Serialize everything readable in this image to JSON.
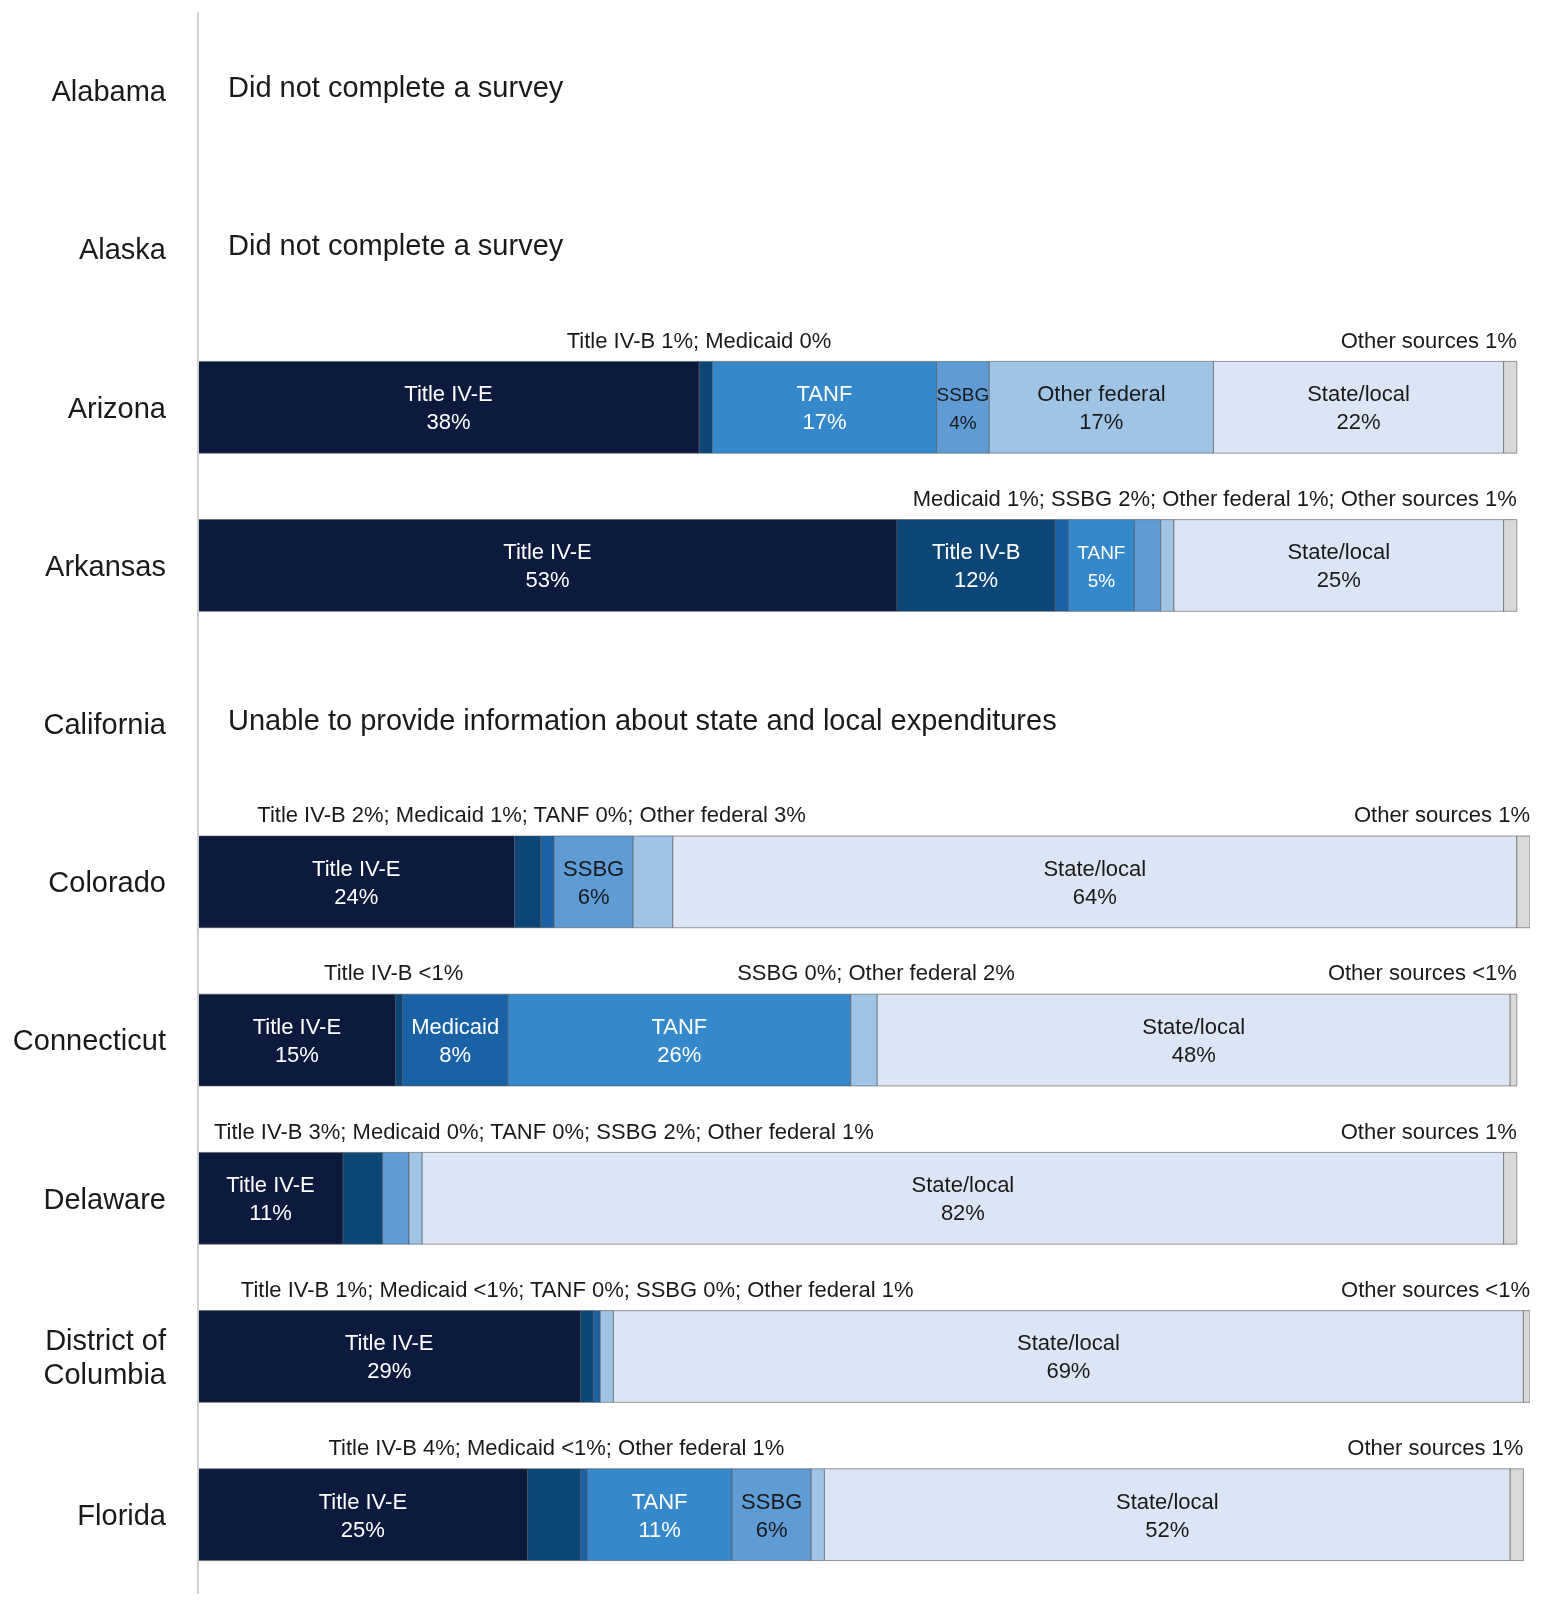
{
  "chart_data": {
    "type": "bar",
    "orientation": "horizontal",
    "stacked": true,
    "tick_labels": "y",
    "categories": [
      "Alabama",
      "Alaska",
      "Arizona",
      "Arkansas",
      "California",
      "Colorado",
      "Connecticut",
      "Delaware",
      "District of Columbia",
      "Florida"
    ],
    "series": [
      {
        "name": "Title IV-E",
        "color": "#0b1a3d",
        "values": [
          null,
          null,
          38,
          53,
          null,
          24,
          15,
          11,
          29,
          25
        ],
        "value_labels": [
          null,
          null,
          "38%",
          "53%",
          null,
          "24%",
          "15%",
          "11%",
          "29%",
          "25%"
        ]
      },
      {
        "name": "Title IV-B",
        "color": "#0b4677",
        "values": [
          null,
          null,
          1,
          12,
          null,
          2,
          0.5,
          3,
          1,
          4
        ],
        "value_labels": [
          null,
          null,
          null,
          "12%",
          null,
          null,
          null,
          null,
          null,
          null
        ]
      },
      {
        "name": "Medicaid",
        "color": "#1a62a6",
        "values": [
          null,
          null,
          0,
          1,
          null,
          1,
          8,
          0,
          0.5,
          0.5
        ],
        "value_labels": [
          null,
          null,
          null,
          null,
          null,
          null,
          "8%",
          null,
          null,
          null
        ]
      },
      {
        "name": "TANF",
        "color": "#3589cb",
        "values": [
          null,
          null,
          17,
          5,
          null,
          0,
          26,
          0,
          0,
          11
        ],
        "value_labels": [
          null,
          null,
          "17%",
          "5%",
          null,
          null,
          "26%",
          null,
          null,
          "11%"
        ]
      },
      {
        "name": "SSBG",
        "color": "#5f9bd5",
        "values": [
          null,
          null,
          4,
          2,
          null,
          6,
          0,
          2,
          0,
          6
        ],
        "value_labels": [
          null,
          null,
          "4%",
          null,
          null,
          "6%",
          null,
          null,
          null,
          "6%"
        ]
      },
      {
        "name": "Other federal",
        "color": "#9fc4e5",
        "values": [
          null,
          null,
          17,
          1,
          null,
          3,
          2,
          1,
          1,
          1
        ],
        "value_labels": [
          null,
          null,
          "17%",
          null,
          null,
          null,
          null,
          null,
          null,
          null
        ]
      },
      {
        "name": "State/local",
        "color": "#dce5f5",
        "values": [
          null,
          null,
          22,
          25,
          null,
          64,
          48,
          82,
          69,
          52
        ],
        "value_labels": [
          null,
          null,
          "22%",
          "25%",
          null,
          "64%",
          "48%",
          "82%",
          "69%",
          "52%"
        ]
      },
      {
        "color": "#d9d9d9",
        "values": [
          null,
          null,
          1,
          1,
          null,
          1,
          0.5,
          1,
          0.5,
          1
        ],
        "value_labels": [
          null,
          null,
          null,
          null,
          null,
          null,
          null,
          null,
          null,
          null
        ]
      }
    ],
    "annotations": [
      "Did not complete a survey",
      "Did not complete a survey",
      {
        "text": "Title IV-B 1%; Medicaid 0%",
        "x": 39,
        "y": "Arizona"
      },
      {
        "text": "Other sources 1%",
        "x": 100,
        "y": "Arizona"
      },
      {
        "text": "Medicaid 1%; SSBG 2%; Other federal 1%; Other sources 1%",
        "x": 100,
        "y": "Arkansas"
      },
      "Unable to provide information about state and local expenditures",
      {
        "text": "Title IV-B 2%; Medicaid 1%; TANF 0%; Other federal 3%",
        "x": 27,
        "y": "Colorado"
      },
      {
        "text": "Other sources 1%",
        "x": 101,
        "y": "Colorado"
      },
      {
        "text": "Title IV-B <1%",
        "x": 15.5,
        "y": "Connecticut"
      },
      {
        "text": "SSBG 0%; Other federal 2%",
        "x": 51.5,
        "y": "Connecticut"
      },
      {
        "text": "Other sources <1%",
        "x": 100,
        "y": "Connecticut"
      },
      {
        "text": "Title IV-B 3%; Medicaid 0%; TANF 0%; SSBG 2%; Other federal 1%",
        "x": 14,
        "y": "Delaware"
      },
      {
        "text": "Other sources 1%",
        "x": 100,
        "y": "Delaware"
      },
      {
        "text": "Title IV-B 1%; Medicaid <1%; TANF 0%; SSBG 0%; Other federal 1%",
        "x": 30,
        "y": "District of Columbia"
      },
      {
        "text": "Other sources <1%",
        "x": 101,
        "y": "District of Columbia"
      },
      {
        "text": "Title IV-B 4%; Medicaid <1%; Other federal 1%",
        "x": 29,
        "y": "Florida"
      },
      {
        "text": "Other sources 1%",
        "x": 100.5,
        "y": "Florida"
      }
    ]
  }
}
